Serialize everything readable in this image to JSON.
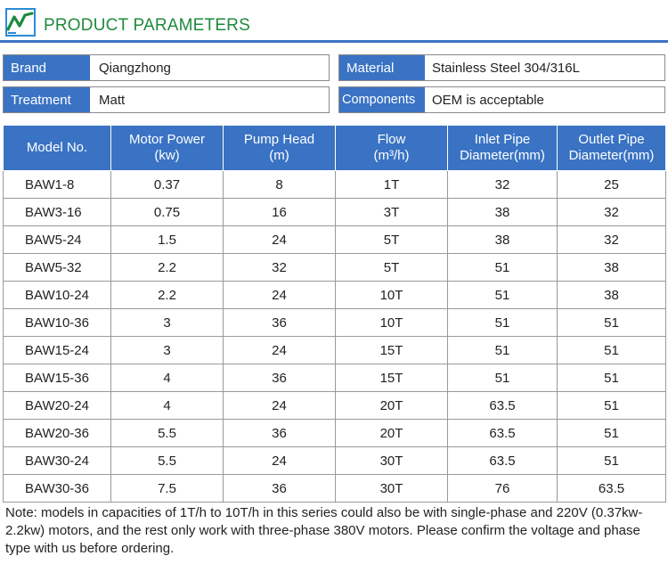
{
  "header": {
    "title": "PRODUCT PARAMETERS",
    "accent_color": "#3a73c4",
    "title_color": "#1f8a3c"
  },
  "attributes": {
    "brand": {
      "label": "Brand",
      "value": "Qiangzhong"
    },
    "treatment": {
      "label": "Treatment",
      "value": "Matt"
    },
    "material": {
      "label": "Material",
      "value": "Stainless Steel 304/316L"
    },
    "components": {
      "label": "Components",
      "value": "OEM is acceptable"
    }
  },
  "table": {
    "headers": [
      [
        "Model No.",
        ""
      ],
      [
        "Motor Power",
        "(kw)"
      ],
      [
        "Pump Head",
        "(m)"
      ],
      [
        "Flow",
        "(m³/h)"
      ],
      [
        "Inlet Pipe",
        "Diameter(mm)"
      ],
      [
        "Outlet Pipe",
        "Diameter(mm)"
      ]
    ],
    "rows": [
      [
        "BAW1-8",
        "0.37",
        "8",
        "1T",
        "32",
        "25"
      ],
      [
        "BAW3-16",
        "0.75",
        "16",
        "3T",
        "38",
        "32"
      ],
      [
        "BAW5-24",
        "1.5",
        "24",
        "5T",
        "38",
        "32"
      ],
      [
        "BAW5-32",
        "2.2",
        "32",
        "5T",
        "51",
        "38"
      ],
      [
        "BAW10-24",
        "2.2",
        "24",
        "10T",
        "51",
        "38"
      ],
      [
        "BAW10-36",
        "3",
        "36",
        "10T",
        "51",
        "51"
      ],
      [
        "BAW15-24",
        "3",
        "24",
        "15T",
        "51",
        "51"
      ],
      [
        "BAW15-36",
        "4",
        "36",
        "15T",
        "51",
        "51"
      ],
      [
        "BAW20-24",
        "4",
        "24",
        "20T",
        "63.5",
        "51"
      ],
      [
        "BAW20-36",
        "5.5",
        "36",
        "20T",
        "63.5",
        "51"
      ],
      [
        "BAW30-24",
        "5.5",
        "24",
        "30T",
        "63.5",
        "51"
      ],
      [
        "BAW30-36",
        "7.5",
        "36",
        "30T",
        "76",
        "63.5"
      ]
    ]
  },
  "note": "Note: models in capacities of 1T/h to 10T/h in this series could also be with single-phase and 220V (0.37kw-2.2kw) motors, and the rest only work with three-phase 380V motors. Please confirm the voltage and phase type with us before ordering."
}
